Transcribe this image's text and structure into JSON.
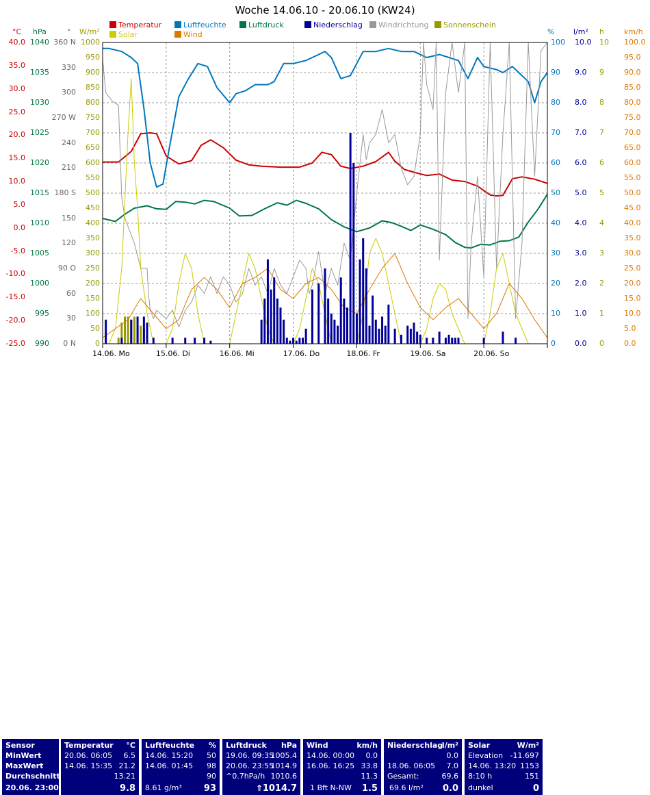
{
  "chart_data": {
    "type": "line",
    "title": "Woche 14.06.10 - 20.06.10 (KW24)",
    "legend": [
      {
        "name": "Temperatur",
        "color": "#cc0000"
      },
      {
        "name": "Luftfeuchte",
        "color": "#0077bb"
      },
      {
        "name": "Luftdruck",
        "color": "#007744"
      },
      {
        "name": "Niederschlag",
        "color": "#000099"
      },
      {
        "name": "Windrichtung",
        "color": "#999999"
      },
      {
        "name": "Sonnenschein",
        "color": "#999900"
      },
      {
        "name": "Solar",
        "color": "#cccc00"
      },
      {
        "name": "Wind",
        "color": "#dd7700"
      }
    ],
    "axes": {
      "temp": {
        "unit": "°C",
        "ticks": [
          "40.0",
          "35.0",
          "30.0",
          "25.0",
          "20.0",
          "15.0",
          "10.0",
          "5.0",
          "0.0",
          "-5.0",
          "-10.0",
          "-15.0",
          "-20.0",
          "-25.0"
        ],
        "color": "#cc0000",
        "range": [
          -25,
          40
        ]
      },
      "pressure": {
        "unit": "hPa",
        "ticks": [
          "1040",
          "1035",
          "1030",
          "1025",
          "1020",
          "1015",
          "1010",
          "1005",
          "1000",
          "995",
          "990"
        ],
        "color": "#007744",
        "range": [
          990,
          1040
        ]
      },
      "winddir": {
        "unit": "°",
        "ticks": [
          "360 N",
          "330",
          "300",
          "270 W",
          "240",
          "210",
          "180 S",
          "150",
          "120",
          "90 O",
          "60",
          "30",
          "0 N"
        ],
        "color": "#666666",
        "range": [
          0,
          360
        ]
      },
      "solar": {
        "unit": "W/m²",
        "ticks": [
          "1000",
          "950",
          "900",
          "850",
          "800",
          "750",
          "700",
          "650",
          "600",
          "550",
          "500",
          "450",
          "400",
          "350",
          "300",
          "250",
          "200",
          "150",
          "100",
          "50",
          "0"
        ],
        "color": "#999900",
        "range": [
          0,
          1000
        ]
      },
      "humidity": {
        "unit": "%",
        "ticks": [
          "100",
          "90",
          "80",
          "70",
          "60",
          "50",
          "40",
          "30",
          "20",
          "10",
          "0"
        ],
        "color": "#0077bb",
        "range": [
          0,
          100
        ]
      },
      "rain": {
        "unit": "l/m²",
        "ticks": [
          "10.0",
          "9.0",
          "8.0",
          "7.0",
          "6.0",
          "5.0",
          "4.0",
          "3.0",
          "2.0",
          "1.0",
          "0.0"
        ],
        "color": "#000099",
        "range": [
          0,
          10
        ]
      },
      "sun": {
        "unit": "h",
        "ticks": [
          "10",
          "9",
          "8",
          "7",
          "6",
          "5",
          "4",
          "3",
          "2",
          "1",
          "0"
        ],
        "color": "#999900",
        "range": [
          0,
          10
        ]
      },
      "wind": {
        "unit": "km/h",
        "ticks": [
          "100.0",
          "95.0",
          "90.0",
          "85.0",
          "80.0",
          "75.0",
          "70.0",
          "65.0",
          "60.0",
          "55.0",
          "50.0",
          "45.0",
          "40.0",
          "35.0",
          "30.0",
          "25.0",
          "20.0",
          "15.0",
          "10.0",
          "5.0",
          "0.0"
        ],
        "color": "#dd7700",
        "range": [
          0,
          100
        ]
      }
    },
    "x_labels": [
      "14.06.  Mo",
      "15.06.  Di",
      "16.06.  Mi",
      "17.06.  Do",
      "18.06.  Fr",
      "19.06.  Sa",
      "20.06.  So"
    ],
    "x_range_days": [
      0,
      7
    ],
    "series": [
      {
        "name": "Temperatur",
        "axis": "temp",
        "color": "#cc0000",
        "x": [
          0,
          0.25,
          0.45,
          0.6,
          0.75,
          0.85,
          1.0,
          1.2,
          1.4,
          1.55,
          1.7,
          1.9,
          2.1,
          2.3,
          2.5,
          2.8,
          3.1,
          3.3,
          3.45,
          3.6,
          3.75,
          3.9,
          4.1,
          4.3,
          4.5,
          4.6,
          4.75,
          4.9,
          5.1,
          5.3,
          5.5,
          5.7,
          5.9,
          6.1,
          6.2,
          6.3,
          6.45,
          6.6,
          6.8,
          7.0
        ],
        "y": [
          14.2,
          14.2,
          16.5,
          20.3,
          20.5,
          20.3,
          15.5,
          13.8,
          14.5,
          17.8,
          19.0,
          17.3,
          14.6,
          13.6,
          13.3,
          13.1,
          13.1,
          14.0,
          16.3,
          15.8,
          13.3,
          12.8,
          13.3,
          14.3,
          16.3,
          14.4,
          12.6,
          12.0,
          11.3,
          11.6,
          10.3,
          10.0,
          9.0,
          7.1,
          6.9,
          7.0,
          10.6,
          11.0,
          10.5,
          9.6
        ]
      },
      {
        "name": "Luftfeuchte",
        "axis": "humidity",
        "color": "#0077bb",
        "x": [
          0,
          0.1,
          0.3,
          0.45,
          0.55,
          0.65,
          0.75,
          0.85,
          0.95,
          1.05,
          1.2,
          1.35,
          1.5,
          1.65,
          1.8,
          2.0,
          2.1,
          2.25,
          2.4,
          2.6,
          2.7,
          2.85,
          3.0,
          3.2,
          3.4,
          3.5,
          3.6,
          3.75,
          3.9,
          4.1,
          4.3,
          4.5,
          4.7,
          4.9,
          5.1,
          5.3,
          5.45,
          5.6,
          5.75,
          5.9,
          6.0,
          6.2,
          6.3,
          6.45,
          6.55,
          6.7,
          6.8,
          6.9,
          7.0
        ],
        "y": [
          98,
          98,
          97,
          95,
          93,
          78,
          60,
          52,
          53,
          65,
          82,
          88,
          93,
          92,
          85,
          80,
          83,
          84,
          86,
          86,
          87,
          93,
          93,
          94,
          96,
          97,
          95,
          88,
          89,
          97,
          97,
          98,
          97,
          97,
          95,
          96,
          95,
          94,
          88,
          95,
          92,
          91,
          90,
          92,
          90,
          87,
          80,
          87,
          90
        ]
      },
      {
        "name": "Luftdruck",
        "axis": "pressure",
        "color": "#007744",
        "x": [
          0,
          0.2,
          0.35,
          0.5,
          0.7,
          0.85,
          1.0,
          1.15,
          1.3,
          1.45,
          1.6,
          1.75,
          2.0,
          2.15,
          2.35,
          2.55,
          2.75,
          2.9,
          3.05,
          3.2,
          3.4,
          3.6,
          3.8,
          4.0,
          4.2,
          4.4,
          4.55,
          4.7,
          4.85,
          5.0,
          5.2,
          5.4,
          5.55,
          5.7,
          5.8,
          5.95,
          6.1,
          6.25,
          6.4,
          6.55,
          6.7,
          6.85,
          7.0
        ],
        "y": [
          1010.8,
          1010.3,
          1011.5,
          1012.5,
          1012.9,
          1012.4,
          1012.3,
          1013.6,
          1013.5,
          1013.2,
          1013.8,
          1013.6,
          1012.5,
          1011.2,
          1011.3,
          1012.4,
          1013.4,
          1013.0,
          1013.8,
          1013.3,
          1012.4,
          1010.6,
          1009.4,
          1008.6,
          1009.2,
          1010.4,
          1010.1,
          1009.5,
          1008.8,
          1009.7,
          1009.0,
          1008.1,
          1006.8,
          1006.0,
          1005.9,
          1006.5,
          1006.4,
          1007.0,
          1007.1,
          1007.7,
          1010.2,
          1012.3,
          1014.8
        ]
      },
      {
        "name": "Windrichtung",
        "axis": "winddir",
        "color": "#999999",
        "x": [
          0,
          0.05,
          0.15,
          0.25,
          0.3,
          0.35,
          0.5,
          0.6,
          0.7,
          0.72,
          0.75,
          0.8,
          0.85,
          1.0,
          1.1,
          1.2,
          1.3,
          1.4,
          1.5,
          1.6,
          1.7,
          1.75,
          1.8,
          1.9,
          2.0,
          2.1,
          2.2,
          2.3,
          2.4,
          2.5,
          2.6,
          2.7,
          2.8,
          2.9,
          3.0,
          3.1,
          3.2,
          3.25,
          3.3,
          3.4,
          3.5,
          3.6,
          3.7,
          3.8,
          3.9,
          4.0,
          4.1,
          4.15,
          4.2,
          4.3,
          4.4,
          4.5,
          4.6,
          4.7,
          4.8,
          4.9,
          5.0,
          5.05,
          5.1,
          5.2,
          5.25,
          5.3,
          5.4,
          5.5,
          5.6,
          5.7,
          5.75,
          5.8,
          5.9,
          6.0,
          6.1,
          6.2,
          6.3,
          6.4,
          6.5,
          6.6,
          6.7,
          6.8,
          6.9,
          7.0
        ],
        "y": [
          340,
          300,
          290,
          285,
          175,
          150,
          120,
          90,
          90,
          60,
          40,
          30,
          40,
          30,
          40,
          20,
          40,
          50,
          70,
          60,
          80,
          70,
          60,
          80,
          70,
          50,
          60,
          90,
          70,
          80,
          60,
          90,
          70,
          60,
          80,
          100,
          90,
          60,
          70,
          110,
          60,
          90,
          70,
          120,
          100,
          180,
          250,
          220,
          240,
          250,
          280,
          240,
          250,
          210,
          190,
          200,
          250,
          360,
          310,
          280,
          360,
          100,
          300,
          360,
          300,
          360,
          30,
          120,
          200,
          80,
          360,
          90,
          250,
          360,
          30,
          120,
          360,
          200,
          350,
          360
        ]
      },
      {
        "name": "Solar",
        "axis": "solar",
        "color": "#cccc00",
        "x": [
          0,
          0.1,
          0.2,
          0.3,
          0.4,
          0.45,
          0.5,
          0.55,
          0.6,
          0.7,
          0.8,
          0.9,
          1.0,
          1.1,
          1.2,
          1.3,
          1.4,
          1.5,
          1.6,
          1.7,
          1.8,
          1.9,
          2.0,
          2.1,
          2.2,
          2.3,
          2.4,
          2.5,
          2.6,
          2.7,
          2.8,
          2.9,
          3.0,
          3.1,
          3.2,
          3.3,
          3.4,
          3.5,
          3.6,
          3.7,
          3.8,
          3.9,
          4.0,
          4.1,
          4.2,
          4.3,
          4.4,
          4.5,
          4.6,
          4.7,
          4.8,
          4.9,
          5.0,
          5.1,
          5.2,
          5.3,
          5.4,
          5.5,
          5.6,
          5.7,
          5.8,
          5.9,
          6.0,
          6.1,
          6.2,
          6.3,
          6.4,
          6.5,
          6.6,
          6.7,
          6.8,
          6.9,
          7.0
        ],
        "y": [
          0,
          0,
          50,
          250,
          700,
          880,
          600,
          450,
          250,
          100,
          0,
          0,
          0,
          50,
          200,
          300,
          250,
          100,
          0,
          0,
          0,
          0,
          0,
          100,
          200,
          300,
          250,
          150,
          50,
          0,
          0,
          0,
          0,
          50,
          150,
          250,
          200,
          100,
          0,
          0,
          0,
          0,
          0,
          100,
          300,
          350,
          300,
          200,
          100,
          0,
          0,
          0,
          0,
          50,
          150,
          200,
          180,
          100,
          50,
          0,
          0,
          0,
          0,
          100,
          250,
          300,
          200,
          100,
          50,
          0,
          0,
          0,
          0
        ]
      },
      {
        "name": "Wind",
        "axis": "wind",
        "color": "#dd7700",
        "x": [
          0,
          0.2,
          0.4,
          0.6,
          0.8,
          1.0,
          1.2,
          1.4,
          1.6,
          1.8,
          2.0,
          2.2,
          2.4,
          2.6,
          2.8,
          3.0,
          3.2,
          3.4,
          3.6,
          3.8,
          4.0,
          4.2,
          4.4,
          4.6,
          4.8,
          5.0,
          5.2,
          5.4,
          5.6,
          5.8,
          6.0,
          6.2,
          6.4,
          6.6,
          6.8,
          7.0
        ],
        "y": [
          2,
          5,
          8,
          15,
          10,
          5,
          8,
          18,
          22,
          18,
          12,
          20,
          22,
          25,
          18,
          15,
          20,
          22,
          18,
          12,
          10,
          18,
          25,
          30,
          20,
          12,
          8,
          12,
          15,
          10,
          5,
          10,
          20,
          15,
          8,
          2
        ]
      }
    ],
    "bars": {
      "name": "Niederschlag",
      "axis": "rain",
      "color": "#000099",
      "x": [
        0.05,
        0.3,
        0.45,
        0.55,
        0.65,
        0.7,
        0.8,
        1.1,
        1.3,
        1.45,
        1.6,
        1.7,
        2.5,
        2.55,
        2.6,
        2.65,
        2.7,
        2.75,
        2.8,
        2.85,
        2.9,
        2.95,
        3.0,
        3.05,
        3.1,
        3.15,
        3.2,
        3.3,
        3.4,
        3.5,
        3.55,
        3.6,
        3.65,
        3.7,
        3.75,
        3.8,
        3.85,
        3.9,
        3.95,
        4.0,
        4.05,
        4.1,
        4.15,
        4.2,
        4.25,
        4.3,
        4.35,
        4.4,
        4.45,
        4.5,
        4.6,
        4.7,
        4.8,
        4.85,
        4.9,
        4.95,
        5.0,
        5.1,
        5.2,
        5.3,
        5.4,
        5.45,
        5.5,
        5.55,
        5.6,
        6.0,
        6.3,
        6.5
      ],
      "values": [
        0.8,
        0.2,
        0.8,
        0.9,
        0.9,
        0.7,
        0.2,
        0.2,
        0.2,
        0.2,
        0.2,
        0.1,
        0.8,
        1.5,
        2.8,
        1.8,
        2.2,
        1.5,
        1.2,
        0.8,
        0.2,
        0.1,
        0.2,
        0.1,
        0.2,
        0.2,
        0.5,
        1.8,
        2.0,
        2.5,
        1.5,
        1.0,
        0.8,
        0.6,
        2.2,
        1.5,
        1.2,
        7.0,
        6.0,
        1.0,
        2.8,
        3.5,
        2.5,
        0.6,
        1.6,
        0.8,
        0.5,
        0.9,
        0.6,
        1.3,
        0.5,
        0.3,
        0.6,
        0.5,
        0.7,
        0.4,
        0.3,
        0.2,
        0.2,
        0.4,
        0.2,
        0.3,
        0.2,
        0.2,
        0.2,
        0.2,
        0.4,
        0.2
      ]
    },
    "sun_bars": {
      "name": "Sonnenschein",
      "axis": "sun",
      "color": "#999900",
      "x": [
        0.25,
        0.3,
        0.35,
        0.4,
        0.45,
        0.5,
        0.55,
        0.6,
        0.65,
        0.7
      ],
      "values": [
        0.2,
        0.7,
        0.9,
        0.9,
        0.8,
        0.9,
        0.5,
        0.6,
        0.5,
        0.2
      ]
    }
  },
  "table": {
    "sensor": {
      "h1": "Sensor",
      "r1": "MinWert",
      "r2": "MaxWert",
      "r3": "Durchschnitt",
      "r4": "20.06. 23:00"
    },
    "temp": {
      "h1": "Temperatur",
      "h2": "°C",
      "r1a": "20.06.  06:05",
      "r1b": "6.5",
      "r2a": "14.06.  15:35",
      "r2b": "21.2",
      "r3b": "13.21",
      "r4b": "9.8"
    },
    "hum": {
      "h1": "Luftfeuchte",
      "h2": "%",
      "r1a": "14.06.  15:20",
      "r1b": "50",
      "r2a": "14.06.  01:45",
      "r2b": "98",
      "r3b": "90",
      "r4a": "8.61 g/m³",
      "r4b": "93"
    },
    "press": {
      "h1": "Luftdruck",
      "h2": "hPa",
      "r1a": "19.06.  09:35",
      "r1b": "1005.4",
      "r2a": "20.06.  23:55",
      "r2b": "1014.9",
      "r3a": "^0.7hPa/h",
      "r3b": "1010.6",
      "r4b": "1014.7"
    },
    "wind": {
      "h1": "Wind",
      "h2": "km/h",
      "r1a": "14.06.  00:00",
      "r1b": "0.0",
      "r2a": "16.06.  16:25",
      "r2b": "33.8",
      "r3b": "11.3",
      "r4a": "1 Bft N-NW",
      "r4b": "1.5"
    },
    "rain": {
      "h1": "Niederschlag",
      "h2": "l/m²",
      "r1b": "0.0",
      "r2a": "18.06.  06:05",
      "r2b": "7.0",
      "r3a": "Gesamt:",
      "r3b": "69.6",
      "r4a": "69.6 l/m²",
      "r4b": "0.0"
    },
    "solar": {
      "h1": "Solar",
      "h2": "W/m²",
      "r1a": "Elevation",
      "r1b": "-11.697",
      "r2a": "14.06.  13:20",
      "r2b": "1153",
      "r3a": "8:10 h",
      "r3b": "151",
      "r4a": "dunkel",
      "r4b": "0"
    }
  }
}
